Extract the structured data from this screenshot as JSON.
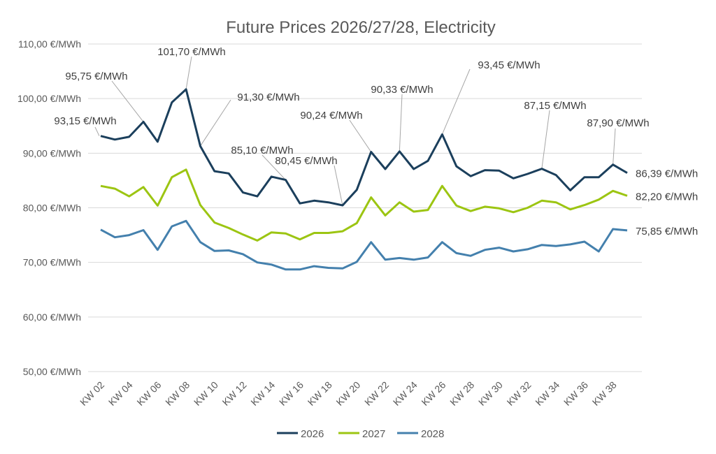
{
  "chart_data": {
    "type": "line",
    "title": "Future Prices 2026/27/28, Electricity",
    "xlabel": "",
    "ylabel": "",
    "ylim": [
      50,
      110
    ],
    "yticks": [
      "50,00 €/MWh",
      "60,00 €/MWh",
      "70,00 €/MWh",
      "80,00 €/MWh",
      "90,00 €/MWh",
      "100,00 €/MWh",
      "110,00 €/MWh"
    ],
    "ytick_values": [
      50,
      60,
      70,
      80,
      90,
      100,
      110
    ],
    "grid": true,
    "legend_position": "bottom",
    "x": [
      "KW 02",
      "KW 03",
      "KW 04",
      "KW 05",
      "KW 06",
      "KW 07",
      "KW 08",
      "KW 09",
      "KW 10",
      "KW 11",
      "KW 12",
      "KW 13",
      "KW 14",
      "KW 15",
      "KW 16",
      "KW 17",
      "KW 18",
      "KW 19",
      "KW 20",
      "KW 21",
      "KW 22",
      "KW 23",
      "KW 24",
      "KW 25",
      "KW 26",
      "KW 27",
      "KW 28",
      "KW 29",
      "KW 30",
      "KW 31",
      "KW 32",
      "KW 33",
      "KW 34",
      "KW 35",
      "KW 36",
      "KW 37",
      "KW 38",
      "KW 39"
    ],
    "xtick_labels": [
      "KW 02",
      "KW 04",
      "KW 06",
      "KW 08",
      "KW 10",
      "KW 12",
      "KW 14",
      "KW 16",
      "KW 18",
      "KW 20",
      "KW 22",
      "KW 24",
      "KW 26",
      "KW 28",
      "KW 30",
      "KW 32",
      "KW 34",
      "KW 36",
      "KW 38"
    ],
    "series": [
      {
        "name": "2026",
        "color": "#1b3f5c",
        "values": [
          93.15,
          92.5,
          93.0,
          95.75,
          92.1,
          99.3,
          101.7,
          91.3,
          86.7,
          86.3,
          82.8,
          82.1,
          85.7,
          85.1,
          80.8,
          81.3,
          81.0,
          80.45,
          83.3,
          90.24,
          87.1,
          90.33,
          87.1,
          88.6,
          93.45,
          87.6,
          85.8,
          86.9,
          86.8,
          85.4,
          86.2,
          87.15,
          86.0,
          83.2,
          85.6,
          85.6,
          87.9,
          86.39
        ]
      },
      {
        "name": "2027",
        "color": "#9cc512",
        "values": [
          84.0,
          83.5,
          82.1,
          83.8,
          80.4,
          85.6,
          87.0,
          80.5,
          77.3,
          76.3,
          75.1,
          74.0,
          75.5,
          75.3,
          74.2,
          75.4,
          75.4,
          75.7,
          77.2,
          81.9,
          78.6,
          81.0,
          79.3,
          79.6,
          84.0,
          80.4,
          79.4,
          80.2,
          79.9,
          79.2,
          80.0,
          81.3,
          81.0,
          79.7,
          80.5,
          81.5,
          83.1,
          82.2
        ]
      },
      {
        "name": "2028",
        "color": "#4480ad",
        "values": [
          76.0,
          74.6,
          75.0,
          75.9,
          72.3,
          76.6,
          77.6,
          73.7,
          72.1,
          72.2,
          71.5,
          70.0,
          69.6,
          68.7,
          68.7,
          69.3,
          69.0,
          68.9,
          70.1,
          73.7,
          70.5,
          70.8,
          70.5,
          70.9,
          73.7,
          71.7,
          71.2,
          72.3,
          72.7,
          72.0,
          72.4,
          73.2,
          73.0,
          73.3,
          73.8,
          72.0,
          76.1,
          75.85
        ]
      }
    ],
    "annotations": [
      {
        "series": 0,
        "index": 0,
        "text": "93,15 €/MWh"
      },
      {
        "series": 0,
        "index": 3,
        "text": "95,75 €/MWh"
      },
      {
        "series": 0,
        "index": 6,
        "text": "101,70 €/MWh"
      },
      {
        "series": 0,
        "index": 7,
        "text": "91,30 €/MWh"
      },
      {
        "series": 0,
        "index": 13,
        "text": "85,10 €/MWh"
      },
      {
        "series": 0,
        "index": 17,
        "text": "80,45 €/MWh"
      },
      {
        "series": 0,
        "index": 19,
        "text": "90,24 €/MWh"
      },
      {
        "series": 0,
        "index": 21,
        "text": "90,33 €/MWh"
      },
      {
        "series": 0,
        "index": 24,
        "text": "93,45 €/MWh"
      },
      {
        "series": 0,
        "index": 31,
        "text": "87,15 €/MWh"
      },
      {
        "series": 0,
        "index": 36,
        "text": "87,90 €/MWh"
      }
    ],
    "end_labels": [
      "86,39 €/MWh",
      "82,20 €/MWh",
      "75,85 €/MWh"
    ]
  }
}
